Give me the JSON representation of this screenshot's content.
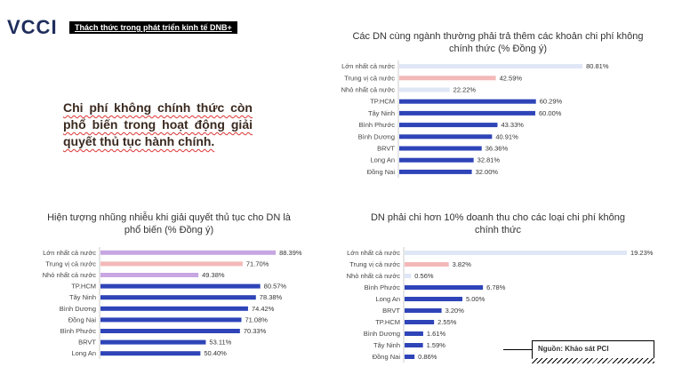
{
  "header": {
    "logo_text": "VCCI",
    "topic_label": "Thách thức trong phát triển kinh tế DNB+"
  },
  "headline": "Chi phí không chính thức còn phổ biến trong hoạt động giải quyết thủ tục hành chính.",
  "source_note": "Nguồn: Khảo sát PCI",
  "colors": {
    "national": "#dfe6f6",
    "national_median_pink": "#f4b8b8",
    "national_low": "#dfe6f6",
    "province": "#2e44b8",
    "purple": "#c7a6e2"
  },
  "chart_data": [
    {
      "type": "bar",
      "title": "Các DN cùng ngành thường phải trả thêm các khoản chi phí không chính thức (% Đồng ý)",
      "categories": [
        "Lớn nhất cả nước",
        "Trung vị cả nước",
        "Nhỏ nhất cả nước",
        "TP.HCM",
        "Tây Ninh",
        "Bình Phước",
        "Bình Dương",
        "BRVT",
        "Long An",
        "Đồng Nai"
      ],
      "values": [
        80.81,
        42.59,
        22.22,
        60.29,
        60.0,
        43.33,
        40.91,
        36.36,
        32.81,
        32.0
      ],
      "labels": [
        "80.81%",
        "42.59%",
        "22.22%",
        "60.29%",
        "60.00%",
        "43.33%",
        "40.91%",
        "36.36%",
        "32.81%",
        "32.00%"
      ],
      "colors": [
        "#dfe6f6",
        "#f4b8b8",
        "#dfe6f6",
        "#2e44b8",
        "#2e44b8",
        "#2e44b8",
        "#2e44b8",
        "#2e44b8",
        "#2e44b8",
        "#2e44b8"
      ],
      "xlim": [
        0,
        100
      ]
    },
    {
      "type": "bar",
      "title": "Hiện tượng nhũng nhiễu khi giải quyết thủ tục cho DN là phổ biến (% Đồng ý)",
      "categories": [
        "Lớn nhất cả nước",
        "Trung vị cả nước",
        "Nhỏ nhất cả nước",
        "TP.HCM",
        "Tây Ninh",
        "Bình Dương",
        "Đồng Nai",
        "Bình Phước",
        "BRVT",
        "Long An"
      ],
      "values": [
        88.39,
        71.7,
        49.38,
        80.57,
        78.38,
        74.42,
        71.08,
        70.33,
        53.11,
        50.4
      ],
      "labels": [
        "88.39%",
        "71.70%",
        "49.38%",
        "80.57%",
        "78.38%",
        "74.42%",
        "71.08%",
        "70.33%",
        "53.11%",
        "50.40%"
      ],
      "colors": [
        "#c7a6e2",
        "#f4b8b8",
        "#c7a6e2",
        "#2e44b8",
        "#2e44b8",
        "#2e44b8",
        "#2e44b8",
        "#2e44b8",
        "#2e44b8",
        "#2e44b8"
      ],
      "xlim": [
        0,
        100
      ]
    },
    {
      "type": "bar",
      "title": "DN phải chi hơn 10% doanh thu cho các loại chi phí không chính thức",
      "categories": [
        "Lớn nhất cả nước",
        "Trung vị cả nước",
        "Nhỏ nhất cả nước",
        "Bình Phước",
        "Long An",
        "BRVT",
        "TP.HCM",
        "Bình Dương",
        "Tây Ninh",
        "Đồng Nai"
      ],
      "values": [
        19.23,
        3.82,
        0.56,
        6.78,
        5.0,
        3.2,
        2.55,
        1.61,
        1.59,
        0.86
      ],
      "labels": [
        "19.23%",
        "3.82%",
        "0.56%",
        "6.78%",
        "5.00%",
        "3.20%",
        "2.55%",
        "1.61%",
        "1.59%",
        "0.86%"
      ],
      "colors": [
        "#dfe6f6",
        "#f4b8b8",
        "#dfe6f6",
        "#2e44b8",
        "#2e44b8",
        "#2e44b8",
        "#2e44b8",
        "#2e44b8",
        "#2e44b8",
        "#2e44b8"
      ],
      "xlim": [
        0,
        40
      ]
    }
  ]
}
